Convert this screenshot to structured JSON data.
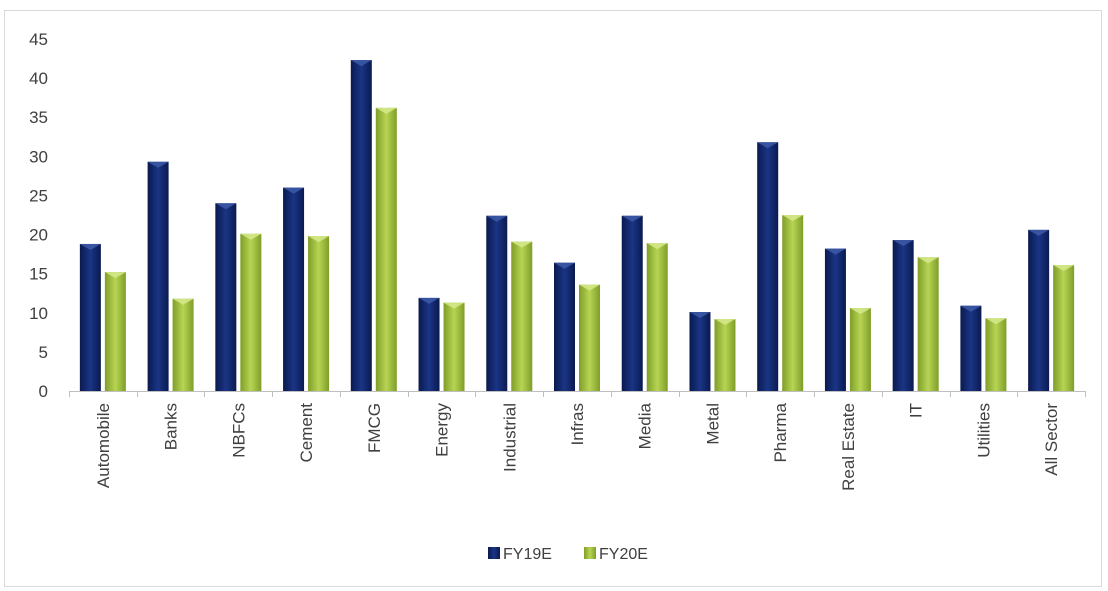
{
  "chart_data": {
    "type": "bar",
    "title": "",
    "xlabel": "",
    "ylabel": "",
    "ylim": [
      0,
      45
    ],
    "yticks": [
      0,
      5,
      10,
      15,
      20,
      25,
      30,
      35,
      40,
      45
    ],
    "grid": false,
    "legend_position": "bottom",
    "categories": [
      "Automobile",
      "Banks",
      "NBFCs",
      "Cement",
      "FMCG",
      "Energy",
      "Industrial",
      "Infras",
      "Media",
      "Metal",
      "Pharma",
      "Real Estate",
      "IT",
      "Utilities",
      "All Sector"
    ],
    "series": [
      {
        "name": "FY19E",
        "color": "#0f2466",
        "values": [
          18.8,
          29.3,
          24.0,
          26.0,
          42.3,
          11.9,
          22.4,
          16.4,
          22.4,
          10.1,
          31.8,
          18.2,
          19.3,
          10.9,
          20.6
        ]
      },
      {
        "name": "FY20E",
        "color": "#9bbb3b",
        "values": [
          15.2,
          11.8,
          20.1,
          19.8,
          36.2,
          11.3,
          19.1,
          13.6,
          18.9,
          9.2,
          22.5,
          10.6,
          17.1,
          9.3,
          16.1
        ]
      }
    ]
  }
}
